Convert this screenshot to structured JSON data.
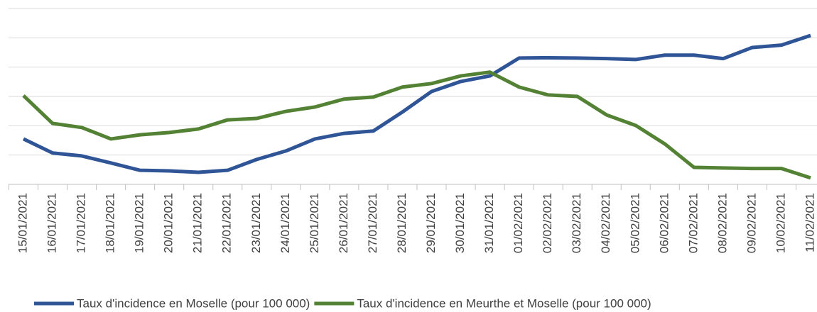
{
  "chart_data": {
    "type": "line",
    "categories": [
      "15/01/2021",
      "16/01/2021",
      "17/01/2021",
      "18/01/2021",
      "19/01/2021",
      "20/01/2021",
      "21/01/2021",
      "22/01/2021",
      "23/01/2021",
      "24/01/2021",
      "25/01/2021",
      "26/01/2021",
      "27/01/2021",
      "28/01/2021",
      "29/01/2021",
      "30/01/2021",
      "31/01/2021",
      "01/02/2021",
      "02/02/2021",
      "03/02/2021",
      "04/02/2021",
      "05/02/2021",
      "06/02/2021",
      "07/02/2021",
      "08/02/2021",
      "09/02/2021",
      "10/02/2021",
      "11/02/2021"
    ],
    "series": [
      {
        "name": "Taux d'incidence en Moselle (pour 100 000)",
        "color": "#2f5597",
        "values": [
          1.55,
          1.07,
          0.97,
          0.73,
          0.48,
          0.46,
          0.41,
          0.48,
          0.85,
          1.14,
          1.55,
          1.74,
          1.82,
          2.47,
          3.17,
          3.51,
          3.7,
          4.31,
          4.32,
          4.31,
          4.29,
          4.26,
          4.41,
          4.41,
          4.29,
          4.67,
          4.75,
          5.08
        ]
      },
      {
        "name": "Taux d'incidence en Meurthe et Moselle (pour 100 000)",
        "color": "#548235",
        "values": [
          3.03,
          2.08,
          1.94,
          1.55,
          1.69,
          1.77,
          1.89,
          2.2,
          2.25,
          2.49,
          2.64,
          2.91,
          2.98,
          3.32,
          3.44,
          3.7,
          3.83,
          3.32,
          3.05,
          3.0,
          2.37,
          2.01,
          1.38,
          0.58,
          0.56,
          0.54,
          0.54,
          0.22
        ]
      }
    ],
    "ylim": [
      0,
      6
    ],
    "yticks": [
      0,
      1,
      2,
      3,
      4,
      5,
      6
    ],
    "grid": true
  }
}
